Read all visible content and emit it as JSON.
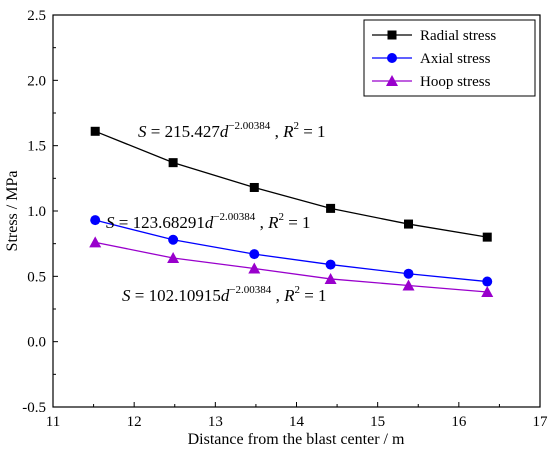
{
  "chart_data": {
    "type": "line",
    "xlabel": "Distance from the blast center / m",
    "ylabel": "Stress / MPa",
    "xlim": [
      11,
      17
    ],
    "ylim": [
      -0.5,
      2.5
    ],
    "xticks": [
      "11",
      "12",
      "13",
      "14",
      "15",
      "16",
      "17"
    ],
    "yticks": [
      "-0.5",
      "0.0",
      "0.5",
      "1.0",
      "1.5",
      "2.0",
      "2.5"
    ],
    "grid": false,
    "legend_position": "top-right",
    "x": [
      11.52,
      12.48,
      13.48,
      14.42,
      15.38,
      16.35
    ],
    "series": [
      {
        "name": "Radial stress",
        "marker": "square",
        "color": "#000000",
        "values": [
          1.61,
          1.37,
          1.18,
          1.02,
          0.9,
          0.8
        ]
      },
      {
        "name": "Axial stress",
        "marker": "circle",
        "color": "#0000ff",
        "values": [
          0.93,
          0.78,
          0.67,
          0.59,
          0.52,
          0.46
        ]
      },
      {
        "name": "Hoop stress",
        "marker": "triangle",
        "color": "#9900cc",
        "values": [
          0.76,
          0.64,
          0.56,
          0.48,
          0.43,
          0.38
        ]
      }
    ],
    "annotations": [
      {
        "S": "S",
        "eq": " = 215.427",
        "d": "d",
        "exp": "−2.00384",
        "comma": " , ",
        "R": "R",
        "r2": "2",
        "eq1": " = 1"
      },
      {
        "S": "S",
        "eq": " = 123.68291",
        "d": "d",
        "exp": "−2.00384",
        "comma": " , ",
        "R": "R",
        "r2": "2",
        "eq1": " = 1"
      },
      {
        "S": "S",
        "eq": " = 102.10915",
        "d": "d",
        "exp": "−2.00384",
        "comma": " , ",
        "R": "R",
        "r2": "2",
        "eq1": " = 1"
      }
    ]
  }
}
